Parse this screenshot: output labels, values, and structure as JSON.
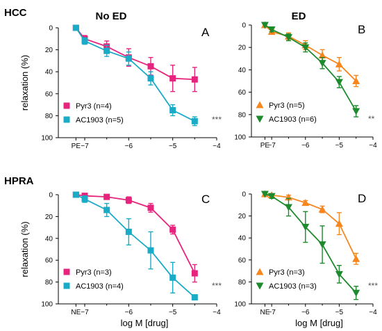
{
  "labels": {
    "row_top": "HCC",
    "row_bottom": "HPRA",
    "col_left": "No ED",
    "col_right": "ED"
  },
  "chart_data": [
    {
      "type": "line",
      "panel": "A",
      "title": "",
      "xlabel": "",
      "ylabel": "relaxation (%)",
      "x_ticks": [
        "PE",
        "−7",
        "−6",
        "−5",
        "−4"
      ],
      "y_ticks": [
        "0",
        "20",
        "40",
        "60",
        "80",
        "100"
      ],
      "y_inverted": true,
      "ylim": [
        0,
        100
      ],
      "xlim": [
        -7.6,
        -4
      ],
      "x": [
        "PE",
        -7,
        -6.5,
        -6,
        -5.5,
        -5,
        -4.5
      ],
      "series": [
        {
          "name": "Pyr3 (n=4)",
          "color": "#e6247e",
          "marker": "square",
          "values": [
            0,
            10,
            17,
            27,
            35,
            46,
            47
          ],
          "errors": [
            0,
            3,
            5,
            8,
            8,
            12,
            11
          ]
        },
        {
          "name": "AC1903 (n=5)",
          "color": "#1aabc6",
          "marker": "square",
          "values": [
            0,
            12,
            21,
            28,
            46,
            75,
            85
          ],
          "errors": [
            0,
            3,
            5,
            6,
            6,
            5,
            4
          ]
        }
      ],
      "annotation": "***",
      "legend": "bottom-left"
    },
    {
      "type": "line",
      "panel": "B",
      "title": "",
      "xlabel": "",
      "ylabel": "",
      "x_ticks": [
        "PE",
        "−7",
        "−6",
        "−5",
        "−4"
      ],
      "y_ticks": [
        "0",
        "20",
        "40",
        "60",
        "80",
        "100"
      ],
      "y_inverted": true,
      "ylim": [
        0,
        100
      ],
      "xlim": [
        -7.6,
        -4
      ],
      "x": [
        "PE",
        -7,
        -6.5,
        -6,
        -5.5,
        -5,
        -4.5
      ],
      "series": [
        {
          "name": "Pyr3 (n=5)",
          "color": "#f7861f",
          "marker": "triangle-up",
          "values": [
            0,
            6,
            10,
            18,
            27,
            35,
            50
          ],
          "errors": [
            0,
            2,
            3,
            4,
            5,
            6,
            5
          ]
        },
        {
          "name": "AC1903 (n=6)",
          "color": "#1d8a2d",
          "marker": "triangle-down",
          "values": [
            0,
            4,
            11,
            20,
            34,
            51,
            77
          ],
          "errors": [
            0,
            2,
            3,
            4,
            5,
            5,
            5
          ]
        }
      ],
      "annotation": "**",
      "legend": "bottom-left"
    },
    {
      "type": "line",
      "panel": "C",
      "title": "",
      "xlabel": "log M [drug]",
      "ylabel": "relaxation (%)",
      "x_ticks": [
        "NE",
        "−7",
        "−6",
        "−5",
        "−4"
      ],
      "y_ticks": [
        "0",
        "20",
        "40",
        "60",
        "80",
        "100"
      ],
      "y_inverted": true,
      "ylim": [
        0,
        100
      ],
      "xlim": [
        -7.6,
        -4
      ],
      "x": [
        "NE",
        -7,
        -6.5,
        -6,
        -5.5,
        -5,
        -4.5
      ],
      "series": [
        {
          "name": "Pyr3 (n=3)",
          "color": "#e6247e",
          "marker": "square",
          "values": [
            0,
            1,
            2,
            5,
            12,
            32,
            72
          ],
          "errors": [
            0,
            1,
            2,
            3,
            4,
            4,
            8
          ]
        },
        {
          "name": "AC1903 (n=4)",
          "color": "#1aabc6",
          "marker": "square",
          "values": [
            0,
            4,
            14,
            34,
            51,
            76,
            94
          ],
          "errors": [
            0,
            3,
            6,
            12,
            17,
            14,
            2
          ]
        }
      ],
      "annotation": "***",
      "legend": "bottom-left"
    },
    {
      "type": "line",
      "panel": "D",
      "title": "",
      "xlabel": "log M [drug]",
      "ylabel": "",
      "x_ticks": [
        "NE",
        "−7",
        "−6",
        "−5",
        "−4"
      ],
      "y_ticks": [
        "0",
        "20",
        "40",
        "60",
        "80",
        "100"
      ],
      "y_inverted": true,
      "ylim": [
        0,
        100
      ],
      "xlim": [
        -7.6,
        -4
      ],
      "x": [
        "NE",
        -7,
        -6.5,
        -6,
        -5.5,
        -5,
        -4.5
      ],
      "series": [
        {
          "name": "Pyr3 (n=3)",
          "color": "#f7861f",
          "marker": "triangle-up",
          "values": [
            0,
            1,
            3,
            8,
            14,
            27,
            59
          ],
          "errors": [
            0,
            1,
            2,
            2,
            3,
            10,
            5
          ]
        },
        {
          "name": "AC1903 (n=3)",
          "color": "#1d8a2d",
          "marker": "triangle-down",
          "values": [
            0,
            2,
            12,
            30,
            46,
            73,
            90
          ],
          "errors": [
            0,
            2,
            8,
            14,
            17,
            8,
            6
          ]
        }
      ],
      "annotation": "***",
      "legend": "bottom-left"
    }
  ]
}
